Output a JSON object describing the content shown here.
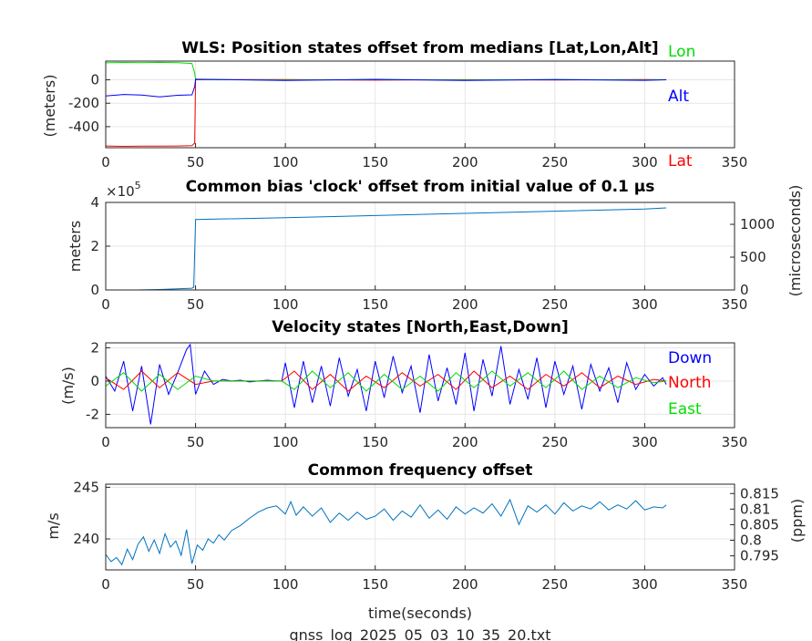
{
  "footer_filename": "gnss_log_2025_05_03_10_35_20.txt",
  "chart_data": [
    {
      "type": "line",
      "title": "WLS: Position states offset from medians [Lat,Lon,Alt]",
      "ylabel": "(meters)",
      "xlim": [
        0,
        350
      ],
      "ylim": [
        -580,
        160
      ],
      "xticks": [
        0,
        50,
        100,
        150,
        200,
        250,
        300,
        350
      ],
      "yticks": [
        -400,
        -200,
        0
      ],
      "xtick_labels": [
        "0",
        "50",
        "100",
        "150",
        "200",
        "250",
        "300",
        "350"
      ],
      "ytick_labels": [
        "-400",
        "-200",
        "0"
      ],
      "grid": true,
      "series": [
        {
          "name": "Lat",
          "color": "#ff0000",
          "x": [
            0,
            10,
            20,
            30,
            40,
            48,
            49.5,
            50,
            100,
            150,
            200,
            250,
            300,
            312
          ],
          "y": [
            -565,
            -568,
            -566,
            -567,
            -565,
            -562,
            -540,
            0,
            2,
            -3,
            1,
            -2,
            3,
            0
          ]
        },
        {
          "name": "Lon",
          "color": "#00dd00",
          "x": [
            0,
            10,
            20,
            30,
            40,
            48,
            49.5,
            50,
            100,
            150,
            200,
            250,
            300,
            312
          ],
          "y": [
            145,
            148,
            147,
            149,
            146,
            140,
            60,
            3,
            -2,
            2,
            -1,
            3,
            -2,
            1
          ]
        },
        {
          "name": "Alt",
          "color": "#0000ff",
          "x": [
            0,
            10,
            20,
            30,
            40,
            48,
            49.5,
            50,
            100,
            150,
            200,
            250,
            300,
            312
          ],
          "y": [
            -138,
            -125,
            -130,
            -145,
            -132,
            -128,
            -60,
            5,
            -5,
            4,
            -6,
            3,
            -4,
            0
          ]
        }
      ],
      "legend_position": "right"
    },
    {
      "type": "line",
      "title": "Common bias 'clock' offset from initial value of 0.1 μs",
      "ylabel": "meters",
      "ylabel_right": "(microseconds)",
      "exponent_label": "×10^5",
      "exponent_base": "×10",
      "exponent_power": "5",
      "xlim": [
        0,
        350
      ],
      "ylim": [
        0,
        4
      ],
      "ylim_right": [
        0,
        1334
      ],
      "xticks": [
        0,
        50,
        100,
        150,
        200,
        250,
        300,
        350
      ],
      "yticks": [
        0,
        2,
        4
      ],
      "yticks_right": [
        0,
        500,
        1000
      ],
      "xtick_labels": [
        "0",
        "50",
        "100",
        "150",
        "200",
        "250",
        "300",
        "350"
      ],
      "ytick_labels": [
        "0",
        "2",
        "4"
      ],
      "ytick_labels_right": [
        "0",
        "500",
        "1000"
      ],
      "grid": true,
      "series": [
        {
          "name": "",
          "color": "#0072bd",
          "x": [
            17,
            30,
            40,
            48,
            49,
            50,
            100,
            150,
            200,
            250,
            300,
            312
          ],
          "y": [
            0,
            0.02,
            0.05,
            0.08,
            0.12,
            3.22,
            3.3,
            3.4,
            3.5,
            3.6,
            3.7,
            3.75
          ]
        }
      ]
    },
    {
      "type": "line",
      "title": "Velocity states [North,East,Down]",
      "ylabel": "(m/s)",
      "xlim": [
        0,
        350
      ],
      "ylim": [
        -2.8,
        2.3
      ],
      "xticks": [
        0,
        50,
        100,
        150,
        200,
        250,
        300,
        350
      ],
      "yticks": [
        -2,
        0,
        2
      ],
      "xtick_labels": [
        "0",
        "50",
        "100",
        "150",
        "200",
        "250",
        "300",
        "350"
      ],
      "ytick_labels": [
        "-2",
        "0",
        "2"
      ],
      "grid": true,
      "series": [
        {
          "name": "Down",
          "color": "#0000ff",
          "x": [
            0,
            5,
            10,
            15,
            20,
            25,
            30,
            35,
            40,
            45,
            47,
            50,
            55,
            60,
            65,
            70,
            75,
            80,
            85,
            90,
            95,
            98,
            100,
            105,
            110,
            115,
            120,
            125,
            130,
            135,
            140,
            145,
            150,
            155,
            160,
            165,
            170,
            175,
            180,
            185,
            190,
            195,
            200,
            205,
            210,
            215,
            220,
            225,
            230,
            235,
            240,
            245,
            250,
            255,
            260,
            265,
            270,
            275,
            280,
            285,
            290,
            295,
            300,
            305,
            310,
            312
          ],
          "y": [
            0.3,
            -0.6,
            1.2,
            -1.8,
            0.9,
            -2.6,
            1.0,
            -0.8,
            0.5,
            1.9,
            2.2,
            -0.8,
            0.6,
            -0.2,
            0.1,
            0.0,
            0.05,
            -0.05,
            0.0,
            0.05,
            0.0,
            0.0,
            1.1,
            -1.6,
            1.2,
            -1.3,
            0.9,
            -1.5,
            1.4,
            -0.9,
            0.7,
            -1.8,
            1.2,
            -1.0,
            1.5,
            -0.7,
            0.9,
            -1.9,
            1.6,
            -1.2,
            0.8,
            -1.4,
            1.7,
            -1.8,
            1.3,
            -0.9,
            2.1,
            -1.4,
            0.7,
            -1.1,
            1.4,
            -1.6,
            1.2,
            -0.8,
            0.9,
            -1.7,
            1.0,
            -0.6,
            0.8,
            -1.3,
            1.1,
            -0.5,
            0.4,
            -0.3,
            0.2,
            -0.2
          ]
        },
        {
          "name": "North",
          "color": "#ff0000",
          "x": [
            0,
            10,
            20,
            30,
            40,
            50,
            60,
            70,
            80,
            90,
            98,
            105,
            115,
            125,
            135,
            145,
            155,
            165,
            175,
            185,
            195,
            205,
            215,
            225,
            235,
            245,
            255,
            265,
            275,
            285,
            295,
            305,
            312
          ],
          "y": [
            0.2,
            -0.5,
            0.6,
            -0.4,
            0.5,
            -0.2,
            0.0,
            0.0,
            0.0,
            0.0,
            0.0,
            0.6,
            -0.5,
            0.4,
            -0.6,
            0.3,
            -0.4,
            0.5,
            -0.3,
            0.4,
            -0.5,
            0.6,
            -0.4,
            0.3,
            -0.5,
            0.4,
            -0.3,
            0.5,
            -0.4,
            0.3,
            -0.2,
            0.1,
            0.0
          ]
        },
        {
          "name": "East",
          "color": "#00dd00",
          "x": [
            0,
            10,
            20,
            30,
            40,
            50,
            60,
            70,
            80,
            90,
            98,
            105,
            115,
            125,
            135,
            145,
            155,
            165,
            175,
            185,
            195,
            205,
            215,
            225,
            235,
            245,
            255,
            265,
            275,
            285,
            295,
            305,
            312
          ],
          "y": [
            -0.3,
            0.5,
            -0.6,
            0.4,
            -0.5,
            0.3,
            0.0,
            0.0,
            0.0,
            0.0,
            0.0,
            -0.5,
            0.6,
            -0.4,
            0.5,
            -0.6,
            0.4,
            -0.5,
            0.3,
            -0.6,
            0.5,
            -0.4,
            0.6,
            -0.3,
            0.5,
            -0.4,
            0.6,
            -0.5,
            0.3,
            -0.4,
            0.2,
            -0.1,
            0.0
          ]
        }
      ],
      "legend_position": "right"
    },
    {
      "type": "line",
      "title": "Common frequency offset",
      "ylabel": "m/s",
      "ylabel_right": "(ppm)",
      "xlabel": "time(seconds)",
      "xlim": [
        0,
        350
      ],
      "ylim": [
        237,
        245.3
      ],
      "ylim_right": [
        0.7905,
        0.818
      ],
      "xticks": [
        0,
        50,
        100,
        150,
        200,
        250,
        300,
        350
      ],
      "yticks": [
        240,
        245
      ],
      "yticks_right": [
        0.795,
        0.8,
        0.805,
        0.81,
        0.815
      ],
      "xtick_labels": [
        "0",
        "50",
        "100",
        "150",
        "200",
        "250",
        "300",
        "350"
      ],
      "ytick_labels": [
        "240",
        "245"
      ],
      "ytick_labels_right": [
        "0.795",
        "0.8",
        "0.805",
        "0.81",
        "0.815"
      ],
      "grid": true,
      "series": [
        {
          "name": "",
          "color": "#0072bd",
          "x": [
            0,
            3,
            6,
            9,
            12,
            15,
            18,
            21,
            24,
            27,
            30,
            33,
            36,
            39,
            42,
            45,
            48,
            51,
            54,
            57,
            60,
            63,
            66,
            70,
            75,
            80,
            85,
            90,
            95,
            100,
            103,
            106,
            110,
            115,
            120,
            125,
            130,
            135,
            140,
            145,
            150,
            155,
            160,
            165,
            170,
            175,
            180,
            185,
            190,
            195,
            200,
            205,
            210,
            215,
            220,
            225,
            230,
            235,
            240,
            245,
            250,
            255,
            260,
            265,
            270,
            275,
            280,
            285,
            290,
            295,
            300,
            305,
            310,
            312
          ],
          "y": [
            238.5,
            237.8,
            238.2,
            237.5,
            239.0,
            238.0,
            239.5,
            240.2,
            238.8,
            239.9,
            238.6,
            240.5,
            239.2,
            239.8,
            238.4,
            240.9,
            237.6,
            239.4,
            238.9,
            240.0,
            239.6,
            240.4,
            239.9,
            240.8,
            241.3,
            242.0,
            242.6,
            243.0,
            243.2,
            242.4,
            243.6,
            242.3,
            243.1,
            242.2,
            243.0,
            241.6,
            242.5,
            241.8,
            242.6,
            241.9,
            242.2,
            242.9,
            241.8,
            242.7,
            242.1,
            243.3,
            242.0,
            242.8,
            241.9,
            243.1,
            242.4,
            243.0,
            242.5,
            243.4,
            242.2,
            243.8,
            241.4,
            243.2,
            242.6,
            243.3,
            242.4,
            243.5,
            242.7,
            243.2,
            242.9,
            243.6,
            242.8,
            243.3,
            242.9,
            243.7,
            242.8,
            243.1,
            243.0,
            243.3
          ]
        }
      ]
    }
  ]
}
